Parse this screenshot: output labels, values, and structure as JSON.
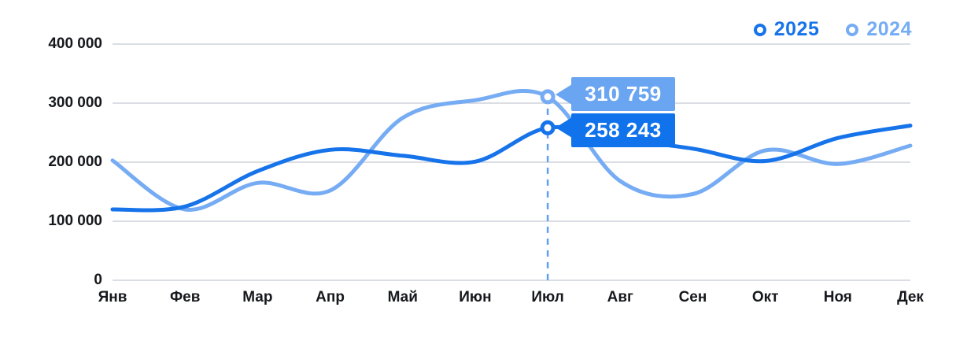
{
  "chart_data": {
    "type": "line",
    "categories": [
      "Янв",
      "Фев",
      "Мар",
      "Апр",
      "Май",
      "Июн",
      "Июл",
      "Авг",
      "Сен",
      "Окт",
      "Ноя",
      "Дек"
    ],
    "series": [
      {
        "name": "2025",
        "color": "#1673e9",
        "values": [
          120000,
          125000,
          185000,
          221000,
          211000,
          201000,
          258243,
          239000,
          223000,
          202000,
          241000,
          262000
        ]
      },
      {
        "name": "2024",
        "color": "#76acf3",
        "values": [
          203000,
          120000,
          165000,
          152000,
          275000,
          305000,
          310759,
          168000,
          146000,
          220000,
          197000,
          228000
        ]
      }
    ],
    "title": "",
    "xlabel": "",
    "ylabel": "",
    "ylim": [
      0,
      400000
    ],
    "yticks": [
      {
        "label": "400 000",
        "value": 400000
      },
      {
        "label": "300 000",
        "value": 300000
      },
      {
        "label": "200 000",
        "value": 200000
      },
      {
        "label": "100 000",
        "value": 100000
      },
      {
        "label": "0",
        "value": 0
      }
    ],
    "grid": "horizontal",
    "legend_position": "top-right",
    "highlight": {
      "category": "Июл",
      "index": 6,
      "labels": [
        {
          "series": "2024",
          "text": "310 759"
        },
        {
          "series": "2025",
          "text": "258 243"
        }
      ]
    }
  },
  "legend": {
    "items": [
      {
        "label": "2025"
      },
      {
        "label": "2024"
      }
    ]
  },
  "tooltip": {
    "top_value": "310 759",
    "bottom_value": "258 243"
  },
  "colors": {
    "series_2025": "#1673e9",
    "series_2024": "#76acf3",
    "tooltip_top_bg": "#6aa5f2",
    "tooltip_bottom_bg": "#1173eb",
    "tooltip_text": "#ffffff",
    "dashed_line": "#5f9ff0",
    "gridline": "#cdd2da",
    "axis_text": "#16181d",
    "background": "#ffffff"
  }
}
